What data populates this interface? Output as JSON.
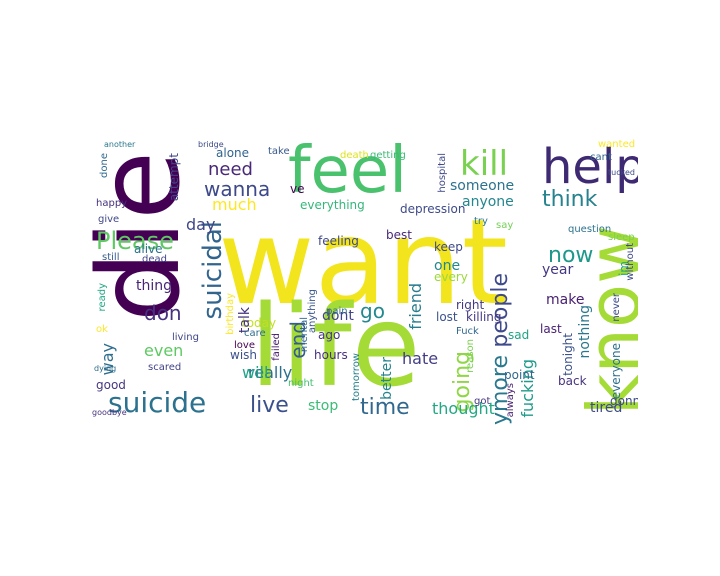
{
  "wordcloud": {
    "words": [
      {
        "text": "want",
        "color": "#f2e51d"
      },
      {
        "text": "die",
        "color": "#440154"
      },
      {
        "text": "life",
        "color": "#a5db36"
      },
      {
        "text": "feel",
        "color": "#4ac16d"
      },
      {
        "text": "know",
        "color": "#a5db36"
      },
      {
        "text": "help",
        "color": "#3e2a72"
      },
      {
        "text": "kill",
        "color": "#7ad151"
      },
      {
        "text": "suicide",
        "color": "#2c728e"
      },
      {
        "text": "suicidal",
        "color": "#32658e"
      },
      {
        "text": "Please",
        "color": "#5ec962"
      },
      {
        "text": "time",
        "color": "#31688e"
      },
      {
        "text": "live",
        "color": "#3b518b"
      },
      {
        "text": "think",
        "color": "#26828e"
      },
      {
        "text": "now",
        "color": "#1f988b"
      },
      {
        "text": "going",
        "color": "#8fd744"
      },
      {
        "text": "people",
        "color": "#3e4a89"
      },
      {
        "text": "anymore",
        "color": "#2a788e"
      },
      {
        "text": "don",
        "color": "#46327e"
      },
      {
        "text": "end",
        "color": "#365c8d"
      },
      {
        "text": "go",
        "color": "#23898e"
      },
      {
        "text": "wanna",
        "color": "#3e4989"
      },
      {
        "text": "need",
        "color": "#482878"
      },
      {
        "text": "thought",
        "color": "#22a884"
      },
      {
        "text": "fucking",
        "color": "#1e9b8a"
      },
      {
        "text": "stop",
        "color": "#3bbb75"
      },
      {
        "text": "someone",
        "color": "#2c728e"
      },
      {
        "text": "anyone",
        "color": "#24868e"
      },
      {
        "text": "tired",
        "color": "#3e4a89"
      },
      {
        "text": "alone",
        "color": "#32648e"
      },
      {
        "text": "ve",
        "color": "#440154"
      },
      {
        "text": "really",
        "color": "#2d708e"
      },
      {
        "text": "today",
        "color": "#c2df23"
      },
      {
        "text": "talk",
        "color": "#46337f"
      },
      {
        "text": "friend",
        "color": "#287c8e"
      },
      {
        "text": "dont",
        "color": "#414487"
      },
      {
        "text": "better",
        "color": "#25848e"
      },
      {
        "text": "hate",
        "color": "#433e85"
      },
      {
        "text": "thing",
        "color": "#482475"
      },
      {
        "text": "way",
        "color": "#2e6e8e"
      },
      {
        "text": "even",
        "color": "#5ec962"
      },
      {
        "text": "will",
        "color": "#20a386"
      },
      {
        "text": "much",
        "color": "#fde725"
      },
      {
        "text": "day",
        "color": "#3f4788"
      },
      {
        "text": "make",
        "color": "#481f70"
      },
      {
        "text": "year",
        "color": "#443983"
      },
      {
        "text": "one",
        "color": "#23888e"
      },
      {
        "text": "lost",
        "color": "#3b528b"
      },
      {
        "text": "killing",
        "color": "#443983"
      },
      {
        "text": "feeling",
        "color": "#3e4989"
      },
      {
        "text": "everything",
        "color": "#35b779"
      },
      {
        "text": "depression",
        "color": "#3e4a89"
      },
      {
        "text": "nothing",
        "color": "#2a788e"
      },
      {
        "text": "im",
        "color": "#22a785"
      },
      {
        "text": "last",
        "color": "#482173"
      },
      {
        "text": "tonight",
        "color": "#3b528b"
      },
      {
        "text": "everyone",
        "color": "#2d708e"
      },
      {
        "text": "gonna",
        "color": "#3e4a89"
      },
      {
        "text": "back",
        "color": "#46337f"
      },
      {
        "text": "point",
        "color": "#31688e"
      },
      {
        "text": "right",
        "color": "#443a83"
      },
      {
        "text": "sad",
        "color": "#20a386"
      },
      {
        "text": "keep",
        "color": "#3f4889"
      },
      {
        "text": "every",
        "color": "#9bd93c"
      },
      {
        "text": "best",
        "color": "#482878"
      },
      {
        "text": "say",
        "color": "#73d056"
      },
      {
        "text": "try",
        "color": "#2a788e"
      },
      {
        "text": "question",
        "color": "#2c728e"
      },
      {
        "text": "sleep",
        "color": "#7ad151"
      },
      {
        "text": "cant",
        "color": "#32648e"
      },
      {
        "text": "death",
        "color": "#dde318"
      },
      {
        "text": "getting",
        "color": "#3bbb75"
      },
      {
        "text": "hospital",
        "color": "#3e4a89"
      },
      {
        "text": "attempt",
        "color": "#404588"
      },
      {
        "text": "take",
        "color": "#38588c"
      },
      {
        "text": "ready",
        "color": "#22a884"
      },
      {
        "text": "alive",
        "color": "#2c728e"
      },
      {
        "text": "still",
        "color": "#365c8d"
      },
      {
        "text": "dead",
        "color": "#404588"
      },
      {
        "text": "happy",
        "color": "#46307e"
      },
      {
        "text": "give",
        "color": "#3f4788"
      },
      {
        "text": "done",
        "color": "#306a8e"
      },
      {
        "text": "living",
        "color": "#3f4788"
      },
      {
        "text": "birthday",
        "color": "#fde725"
      },
      {
        "text": "care",
        "color": "#2e6e8e"
      },
      {
        "text": "scared",
        "color": "#414287"
      },
      {
        "text": "wish",
        "color": "#3b528b"
      },
      {
        "text": "good",
        "color": "#453781"
      },
      {
        "text": "ago",
        "color": "#453781"
      },
      {
        "text": "hours",
        "color": "#46307e"
      },
      {
        "text": "night",
        "color": "#44bf70"
      },
      {
        "text": "love",
        "color": "#440154"
      },
      {
        "text": "failed",
        "color": "#481a6c"
      },
      {
        "text": "pain",
        "color": "#2e6e8e"
      },
      {
        "text": "tomorrow",
        "color": "#27808e"
      },
      {
        "text": "anything",
        "color": "#39568c"
      },
      {
        "text": "Fuck",
        "color": "#31688e"
      },
      {
        "text": "reason",
        "color": "#7ad151"
      },
      {
        "text": "mental",
        "color": "#31688e"
      },
      {
        "text": "without",
        "color": "#3e4989"
      },
      {
        "text": "never",
        "color": "#3e4989"
      },
      {
        "text": "wanted",
        "color": "#fde725"
      },
      {
        "text": "tucked",
        "color": "#3e4989"
      },
      {
        "text": "bridge",
        "color": "#3e4a89"
      },
      {
        "text": "another",
        "color": "#2a788e"
      },
      {
        "text": "goodbye",
        "color": "#46337f"
      },
      {
        "text": "dying",
        "color": "#2e6e8e"
      },
      {
        "text": "got",
        "color": "#453781"
      },
      {
        "text": "always",
        "color": "#482173"
      },
      {
        "text": "ok",
        "color": "#fde725"
      }
    ]
  }
}
